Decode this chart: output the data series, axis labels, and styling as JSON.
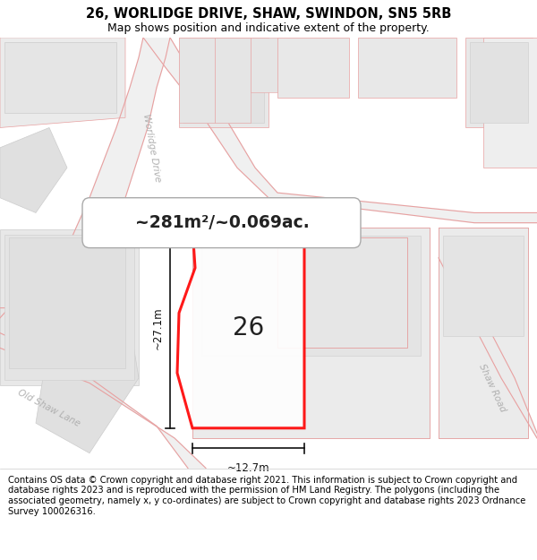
{
  "title": "26, WORLIDGE DRIVE, SHAW, SWINDON, SN5 5RB",
  "subtitle": "Map shows position and indicative extent of the property.",
  "copyright": "Contains OS data © Crown copyright and database right 2021. This information is subject to Crown copyright and database rights 2023 and is reproduced with the permission of HM Land Registry. The polygons (including the associated geometry, namely x, y co-ordinates) are subject to Crown copyright and database rights 2023 Ordnance Survey 100026316.",
  "bg_color": "#f0f0f0",
  "map_bg": "#f8f8f8",
  "title_fontsize": 10.5,
  "subtitle_fontsize": 9,
  "copyright_fontsize": 7.2,
  "area_label": "~281m²/~0.069ac.",
  "house_number": "26",
  "dim_width": "~12.7m",
  "dim_height": "~27.1m",
  "road_color": "#e8a0a0",
  "property_color": "#ff0000",
  "dim_color": "#111111",
  "road_label_color": "#b0b0b0",
  "building_fill": "#e8e8e8",
  "building_edge": "#cccccc"
}
